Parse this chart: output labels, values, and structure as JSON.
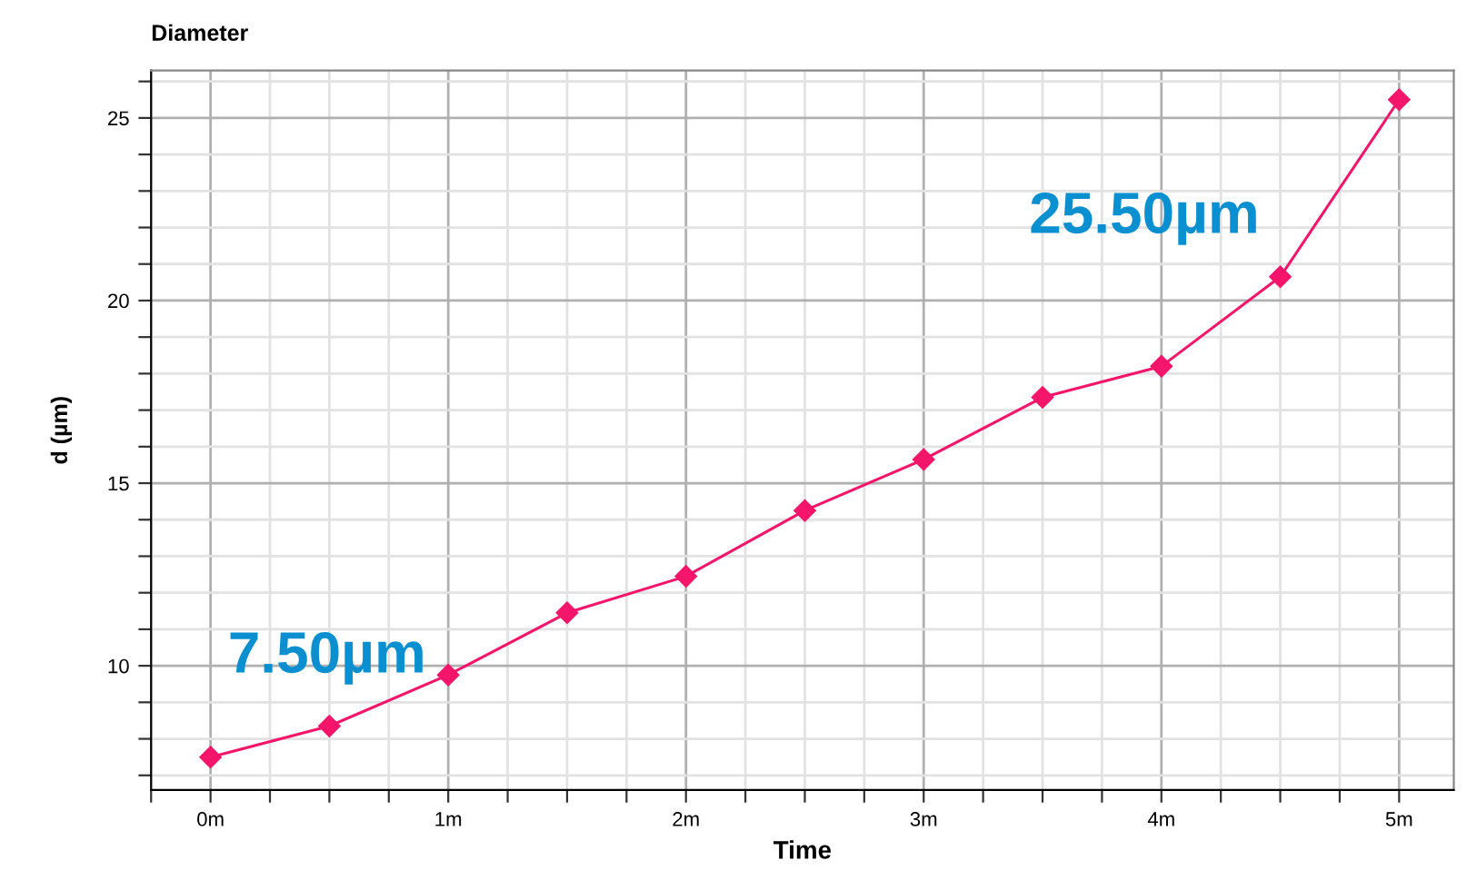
{
  "chart_data": {
    "type": "line",
    "title": "Diameter",
    "xlabel": "Time",
    "ylabel": "d (µm)",
    "x": [
      0,
      0.5,
      1,
      1.5,
      2,
      2.5,
      3,
      3.5,
      4,
      4.5,
      5
    ],
    "series": [
      {
        "color": "#f5156a",
        "values": [
          7.5,
          8.35,
          9.75,
          11.45,
          12.45,
          14.25,
          15.65,
          17.35,
          18.2,
          20.65,
          25.5
        ]
      }
    ],
    "xlim": [
      -0.25,
      5.23
    ],
    "ylim": [
      6.6,
      26.3
    ],
    "xticks": [
      {
        "value": -0.25,
        "label": null
      },
      {
        "value": 0,
        "label": "0m"
      },
      {
        "value": 0.25,
        "label": null
      },
      {
        "value": 0.5,
        "label": null
      },
      {
        "value": 0.75,
        "label": null
      },
      {
        "value": 1,
        "label": "1m"
      },
      {
        "value": 1.25,
        "label": null
      },
      {
        "value": 1.5,
        "label": null
      },
      {
        "value": 1.75,
        "label": null
      },
      {
        "value": 2,
        "label": "2m"
      },
      {
        "value": 2.25,
        "label": null
      },
      {
        "value": 2.5,
        "label": null
      },
      {
        "value": 2.75,
        "label": null
      },
      {
        "value": 3,
        "label": "3m"
      },
      {
        "value": 3.25,
        "label": null
      },
      {
        "value": 3.5,
        "label": null
      },
      {
        "value": 3.75,
        "label": null
      },
      {
        "value": 4,
        "label": "4m"
      },
      {
        "value": 4.25,
        "label": null
      },
      {
        "value": 4.5,
        "label": null
      },
      {
        "value": 4.75,
        "label": null
      },
      {
        "value": 5,
        "label": "5m"
      }
    ],
    "yticks": [
      {
        "value": 7,
        "label": null
      },
      {
        "value": 8,
        "label": null
      },
      {
        "value": 9,
        "label": null
      },
      10,
      {
        "value": 11,
        "label": null
      },
      {
        "value": 12,
        "label": null
      },
      {
        "value": 13,
        "label": null
      },
      {
        "value": 14,
        "label": null
      },
      15,
      {
        "value": 16,
        "label": null
      },
      {
        "value": 17,
        "label": null
      },
      {
        "value": 18,
        "label": null
      },
      {
        "value": 19,
        "label": null
      },
      20,
      {
        "value": 21,
        "label": null
      },
      {
        "value": 22,
        "label": null
      },
      {
        "value": 23,
        "label": null
      },
      {
        "value": 24,
        "label": null
      },
      25,
      {
        "value": 26,
        "label": null
      }
    ],
    "grid": true,
    "marker": "diamond",
    "line_style": "solid",
    "annotations": [
      "7.50µm",
      "25.50µm"
    ]
  }
}
